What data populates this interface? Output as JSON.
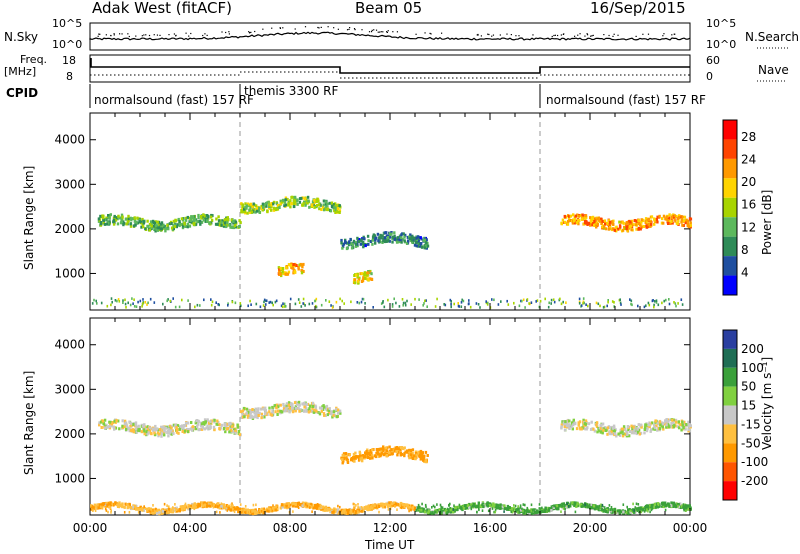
{
  "header": {
    "title": "Adak West (fitACF)",
    "beam": "Beam 05",
    "date": "16/Sep/2015"
  },
  "summary_panels": {
    "nsky_label": "N.Sky",
    "nsky_scale_top": "10^5",
    "nsky_scale_bottom": "10^0",
    "nsearch_label": "N.Search",
    "freq_label": "Freq.",
    "freq_unit": "[MHz]",
    "freq_scale_top": "18",
    "freq_scale_bottom": "8",
    "nave_label": "Nave",
    "nave_scale_top": "60",
    "nave_scale_bottom": "0",
    "cpid_label": "CPID",
    "cpid_segments": [
      {
        "label": "normalsound (fast) 157 RF",
        "start_hour": 0,
        "end_hour": 6
      },
      {
        "label": "themis 3300 RF",
        "start_hour": 6,
        "end_hour": 18
      },
      {
        "label": "normalsound (fast) 157 RF",
        "start_hour": 18,
        "end_hour": 24
      }
    ]
  },
  "chart_data": [
    {
      "type": "heatmap",
      "name": "power",
      "ylabel": "Slant Range [km]",
      "xlim": [
        0,
        24
      ],
      "ylim": [
        180,
        4600
      ],
      "yticks": [
        "1000",
        "2000",
        "3000",
        "4000"
      ],
      "colorbar_label": "Power [dB]",
      "colorbar_ticks": [
        "4",
        "8",
        "12",
        "16",
        "20",
        "24",
        "28"
      ],
      "colorbar_range": [
        0,
        31
      ],
      "colors": [
        "#0000ff",
        "#1f4fa0",
        "#2e8b57",
        "#5cb85c",
        "#a8d400",
        "#ffd400",
        "#ff9900",
        "#ff4400",
        "#ff0000"
      ],
      "echo_regions": [
        {
          "t0": 0.3,
          "t1": 6.0,
          "range_km": 2100,
          "value": 12
        },
        {
          "t0": 6.0,
          "t1": 10.0,
          "range_km": 2500,
          "value": 14
        },
        {
          "t0": 10.0,
          "t1": 13.5,
          "range_km": 1700,
          "value": 8
        },
        {
          "t0": 18.8,
          "t1": 24.0,
          "range_km": 2100,
          "value": 22
        },
        {
          "t0": 7.5,
          "t1": 8.5,
          "range_km": 1000,
          "value": 20
        },
        {
          "t0": 10.5,
          "t1": 11.3,
          "range_km": 900,
          "value": 18
        }
      ]
    },
    {
      "type": "heatmap",
      "name": "velocity",
      "xlabel": "Time UT",
      "ylabel": "Slant Range [km]",
      "xlim": [
        0,
        24
      ],
      "ylim": [
        180,
        4600
      ],
      "xticks": [
        "00:00",
        "04:00",
        "08:00",
        "12:00",
        "16:00",
        "20:00",
        "00:00"
      ],
      "yticks": [
        "1000",
        "2000",
        "3000",
        "4000"
      ],
      "colorbar_label": "Velocity [m s⁻¹]",
      "colorbar_ticks": [
        "200",
        "100",
        "50",
        "15",
        "-15",
        "-50",
        "-100",
        "-200"
      ],
      "colors": [
        "#2a3fa0",
        "#1f6e55",
        "#3aa03a",
        "#80d040",
        "#c8c8c8",
        "#ffc040",
        "#ff9900",
        "#ff5500",
        "#ff0000"
      ],
      "echo_regions": [
        {
          "t0": 0.3,
          "t1": 6.0,
          "range_km": 2100,
          "value": 0
        },
        {
          "t0": 6.0,
          "t1": 10.0,
          "range_km": 2500,
          "value": 0
        },
        {
          "t0": 10.0,
          "t1": 13.5,
          "range_km": 1500,
          "value": -60
        },
        {
          "t0": 18.8,
          "t1": 24.0,
          "range_km": 2100,
          "value": 0
        },
        {
          "t0": 0.0,
          "t1": 13.0,
          "range_km": 300,
          "value": -40
        },
        {
          "t0": 13.0,
          "t1": 24.0,
          "range_km": 300,
          "value": 40
        }
      ]
    }
  ]
}
